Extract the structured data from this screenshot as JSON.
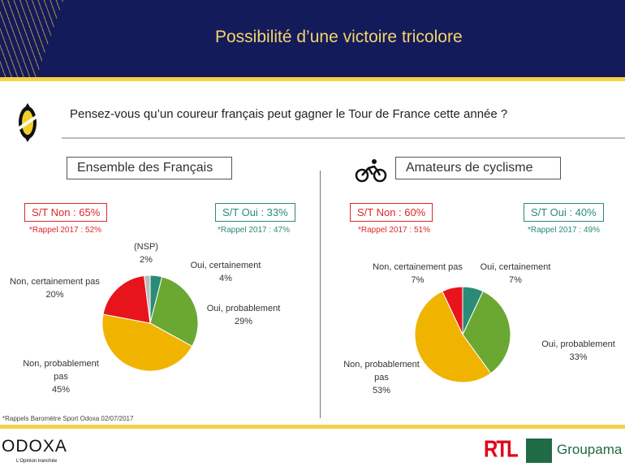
{
  "header": {
    "title": "Possibilité d’une victoire tricolore"
  },
  "question": "Pensez-vous qu’un coureur français peut gagner le Tour de France cette année ?",
  "colors": {
    "navy": "#141b5b",
    "gold": "#f6d24a",
    "oui_cert": "#2a8b78",
    "oui_prob": "#6aa832",
    "non_prob": "#f0b400",
    "non_cert": "#e8141c",
    "nsp": "#bbbbbb"
  },
  "left": {
    "title": "Ensemble des Français",
    "st_non": "S/T Non : 65%",
    "rappel_non": "*Rappel 2017 : 52%",
    "st_oui": "S/T Oui : 33%",
    "rappel_oui": "*Rappel 2017 : 47%"
  },
  "right": {
    "title": "Amateurs de cyclisme",
    "st_non": "S/T Non : 60%",
    "rappel_non": "*Rappel 2017 : 51%",
    "st_oui": "S/T Oui : 40%",
    "rappel_oui": "*Rappel 2017 : 49%"
  },
  "chart_data": [
    {
      "type": "pie",
      "title": "Ensemble des Français",
      "slices": [
        {
          "label": "Oui, certainement",
          "value": 4,
          "text": "4%"
        },
        {
          "label": "Oui, probablement",
          "value": 29,
          "text": "29%"
        },
        {
          "label": "Non, probablement pas",
          "value": 45,
          "text": "45%"
        },
        {
          "label": "Non, certainement pas",
          "value": 20,
          "text": "20%"
        },
        {
          "label": "(NSP)",
          "value": 2,
          "text": "2%"
        }
      ]
    },
    {
      "type": "pie",
      "title": "Amateurs de cyclisme",
      "slices": [
        {
          "label": "Oui, certainement",
          "value": 7,
          "text": "7%"
        },
        {
          "label": "Oui, probablement",
          "value": 33,
          "text": "33%"
        },
        {
          "label": "Non, probablement pas",
          "value": 53,
          "text": "53%"
        },
        {
          "label": "Non, certainement pas",
          "value": 7,
          "text": "7%"
        }
      ]
    }
  ],
  "footnote": "*Rappels Baromètre Sport Odoxa 02/07/2017",
  "footer": {
    "odoxa": "ODOXA",
    "tagline": "L'Opinion tranchée",
    "rtl": "RTL",
    "groupama": "Groupama"
  }
}
